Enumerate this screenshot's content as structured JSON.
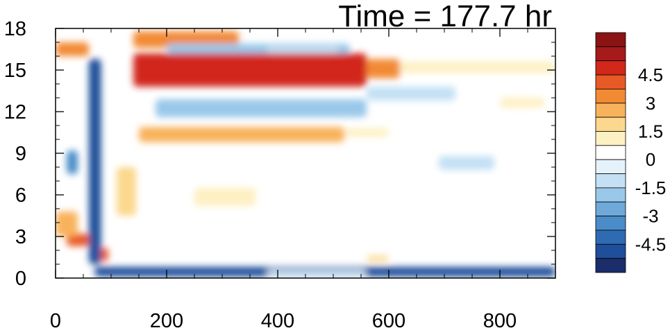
{
  "chart_data": {
    "type": "heatmap",
    "title": "Time = 177.7 hr",
    "xlabel": "",
    "ylabel": "",
    "xlim": [
      0,
      900
    ],
    "ylim": [
      0,
      18
    ],
    "x_ticks": [
      0,
      200,
      400,
      600,
      800
    ],
    "x_tick_labels": [
      "0",
      "200",
      "400",
      "600",
      "800"
    ],
    "y_ticks": [
      0,
      3,
      6,
      9,
      12,
      15,
      18
    ],
    "y_tick_labels": [
      "0",
      "3",
      "6",
      "9",
      "12",
      "15",
      "18"
    ],
    "grid": false,
    "colorbar": {
      "levels": [
        -5.25,
        -4.5,
        -3.75,
        -3,
        -2.25,
        -1.5,
        -0.75,
        0,
        0.75,
        1.5,
        2.25,
        3,
        3.75,
        4.5,
        5.25
      ],
      "labels": [
        "-4.5",
        "-3",
        "-1.5",
        "0",
        "1.5",
        "3",
        "4.5"
      ],
      "label_values": [
        -4.5,
        -3,
        -1.5,
        0,
        1.5,
        3,
        4.5
      ],
      "colors": [
        "#1b2d6b",
        "#1f4e9a",
        "#2f6bb3",
        "#4a8cc8",
        "#6ea9da",
        "#99c8ea",
        "#c3e0f4",
        "#e6f2fb",
        "#ffffff",
        "#fdf0c2",
        "#fbd88d",
        "#f8b25c",
        "#f28a34",
        "#e85a25",
        "#d2281c",
        "#a51a1a",
        "#8a1414"
      ]
    },
    "features": [
      {
        "x0": 140,
        "x1": 560,
        "y0": 13.8,
        "y1": 16.2,
        "value": 5.2
      },
      {
        "x0": 560,
        "x1": 620,
        "y0": 14.4,
        "y1": 15.8,
        "value": 3.2
      },
      {
        "x0": 620,
        "x1": 900,
        "y0": 14.8,
        "y1": 15.6,
        "value": 0.9
      },
      {
        "x0": 140,
        "x1": 330,
        "y0": 16.6,
        "y1": 17.8,
        "value": 3.3
      },
      {
        "x0": 200,
        "x1": 530,
        "y0": 16.2,
        "y1": 16.9,
        "value": -2.2
      },
      {
        "x0": 180,
        "x1": 560,
        "y0": 11.6,
        "y1": 12.9,
        "value": -1.8
      },
      {
        "x0": 560,
        "x1": 720,
        "y0": 12.8,
        "y1": 13.8,
        "value": -1.0
      },
      {
        "x0": 150,
        "x1": 520,
        "y0": 9.8,
        "y1": 10.9,
        "value": 2.4
      },
      {
        "x0": 520,
        "x1": 600,
        "y0": 10.2,
        "y1": 10.8,
        "value": 1.1
      },
      {
        "x0": 70,
        "x1": 900,
        "y0": 0.1,
        "y1": 0.8,
        "value": -4.6
      },
      {
        "x0": 380,
        "x1": 560,
        "y0": 0.15,
        "y1": 0.6,
        "value": -1.5
      },
      {
        "x0": 250,
        "x1": 360,
        "y0": 5.2,
        "y1": 6.5,
        "value": 1.0
      },
      {
        "x0": 690,
        "x1": 790,
        "y0": 7.8,
        "y1": 8.8,
        "value": -1.4
      },
      {
        "x0": 20,
        "x1": 60,
        "y0": 2.3,
        "y1": 3.2,
        "value": 4.0
      },
      {
        "x0": 0,
        "x1": 40,
        "y0": 3.0,
        "y1": 4.8,
        "value": 2.8
      },
      {
        "x0": 20,
        "x1": 40,
        "y0": 7.5,
        "y1": 9.2,
        "value": -3.2
      },
      {
        "x0": 60,
        "x1": 82,
        "y0": 1.0,
        "y1": 15.8,
        "value": -4.8
      },
      {
        "x0": 82,
        "x1": 95,
        "y0": 1.2,
        "y1": 2.2,
        "value": 4.0
      },
      {
        "x0": 0,
        "x1": 60,
        "y0": 16.0,
        "y1": 17.0,
        "value": 3.0
      },
      {
        "x0": 110,
        "x1": 145,
        "y0": 4.5,
        "y1": 8.0,
        "value": 2.0
      },
      {
        "x0": 800,
        "x1": 880,
        "y0": 12.3,
        "y1": 13.0,
        "value": 1.0
      },
      {
        "x0": 560,
        "x1": 600,
        "y0": 1.2,
        "y1": 1.6,
        "value": 1.6
      },
      {
        "x0": 380,
        "x1": 510,
        "y0": 16.2,
        "y1": 16.7,
        "value": -1.2
      }
    ]
  }
}
